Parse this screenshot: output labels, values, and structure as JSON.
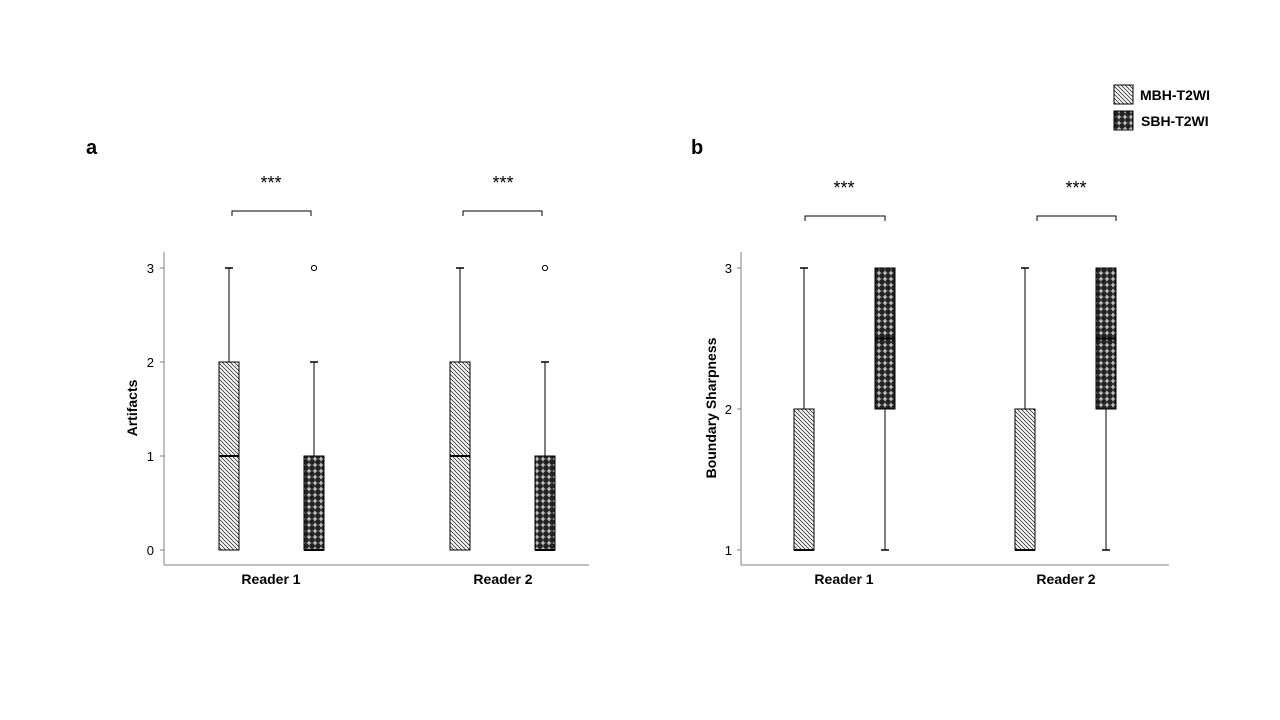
{
  "chart_data": [
    {
      "panel": "a",
      "type": "box",
      "ylabel": "Artifacts",
      "yticks": [
        0,
        1,
        2,
        3
      ],
      "ylim": [
        0,
        3
      ],
      "categories": [
        "Reader 1",
        "Reader 2"
      ],
      "series": [
        {
          "name": "MBH-T2WI",
          "boxes": [
            {
              "min": 0,
              "q1": 0,
              "median": 1,
              "q3": 2,
              "max": 3,
              "outliers": []
            },
            {
              "min": 0,
              "q1": 0,
              "median": 1,
              "q3": 2,
              "max": 3,
              "outliers": []
            }
          ]
        },
        {
          "name": "SBH-T2WI",
          "boxes": [
            {
              "min": 0,
              "q1": 0,
              "median": 0,
              "q3": 1,
              "max": 2,
              "outliers": [
                3
              ]
            },
            {
              "min": 0,
              "q1": 0,
              "median": 0,
              "q3": 1,
              "max": 2,
              "outliers": [
                3
              ]
            }
          ]
        }
      ],
      "annotations": [
        "***",
        "***"
      ]
    },
    {
      "panel": "b",
      "type": "box",
      "ylabel": "Boundary Sharpness",
      "yticks": [
        1,
        2,
        3
      ],
      "ylim": [
        1,
        3
      ],
      "categories": [
        "Reader 1",
        "Reader 2"
      ],
      "series": [
        {
          "name": "MBH-T2WI",
          "boxes": [
            {
              "min": 1,
              "q1": 1,
              "median": 1,
              "q3": 2,
              "max": 3,
              "outliers": []
            },
            {
              "min": 1,
              "q1": 1,
              "median": 1,
              "q3": 2,
              "max": 3,
              "outliers": []
            }
          ]
        },
        {
          "name": "SBH-T2WI",
          "boxes": [
            {
              "min": 1,
              "q1": 2,
              "median": 2.5,
              "q3": 3,
              "max": 3,
              "outliers": []
            },
            {
              "min": 1,
              "q1": 2,
              "median": 2.5,
              "q3": 3,
              "max": 3,
              "outliers": []
            }
          ]
        }
      ],
      "annotations": [
        "***",
        "***"
      ]
    }
  ],
  "legend": {
    "placement": "top-right",
    "entries": [
      {
        "label": "MBH-T2WI",
        "pattern": "diagonal-hatch"
      },
      {
        "label": "SBH-T2WI",
        "pattern": "dark-cross"
      }
    ]
  },
  "colors": {
    "axis": "#808080",
    "ink": "#000000",
    "background": "#ffffff"
  }
}
